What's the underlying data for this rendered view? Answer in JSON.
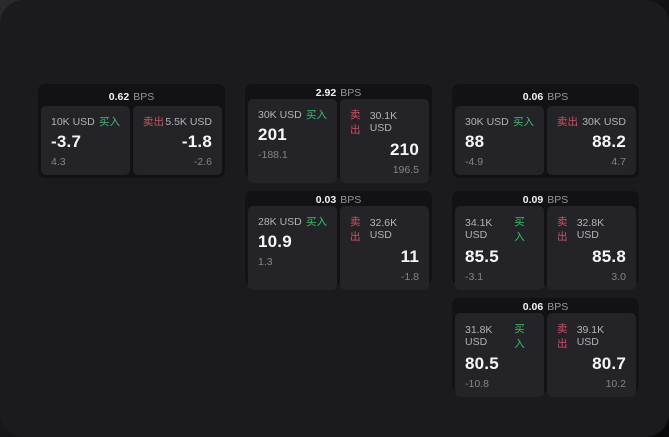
{
  "page": {
    "bps_unit": "BPS",
    "buy_label": "买入",
    "sell_label": "卖出"
  },
  "colors": {
    "surface": "#1b1b1d",
    "card": "#121214",
    "panel": "#242428",
    "buy_green": "#3dbd6d",
    "sell_red": "#cf5063"
  },
  "cards": [
    {
      "spread": "0.62",
      "buy": {
        "amount": "10K USD",
        "price": "-3.7",
        "delta": "4.3"
      },
      "sell": {
        "amount": "5.5K USD",
        "price": "-1.8",
        "delta": "-2.6"
      }
    },
    {
      "spread": "2.92",
      "buy": {
        "amount": "30K USD",
        "price": "201",
        "delta": "-188.1"
      },
      "sell": {
        "amount": "30.1K USD",
        "price": "210",
        "delta": "196.5"
      }
    },
    {
      "spread": "0.06",
      "buy": {
        "amount": "30K USD",
        "price": "88",
        "delta": "-4.9"
      },
      "sell": {
        "amount": "30K USD",
        "price": "88.2",
        "delta": "4.7"
      }
    },
    {
      "spread": "0.03",
      "buy": {
        "amount": "28K USD",
        "price": "10.9",
        "delta": "1.3"
      },
      "sell": {
        "amount": "32.6K USD",
        "price": "11",
        "delta": "-1.8"
      }
    },
    {
      "spread": "0.09",
      "buy": {
        "amount": "34.1K USD",
        "price": "85.5",
        "delta": "-3.1"
      },
      "sell": {
        "amount": "32.8K USD",
        "price": "85.8",
        "delta": "3.0"
      }
    },
    {
      "spread": "0.06",
      "buy": {
        "amount": "31.8K USD",
        "price": "80.5",
        "delta": "-10.8"
      },
      "sell": {
        "amount": "39.1K USD",
        "price": "80.7",
        "delta": "10.2"
      }
    }
  ]
}
